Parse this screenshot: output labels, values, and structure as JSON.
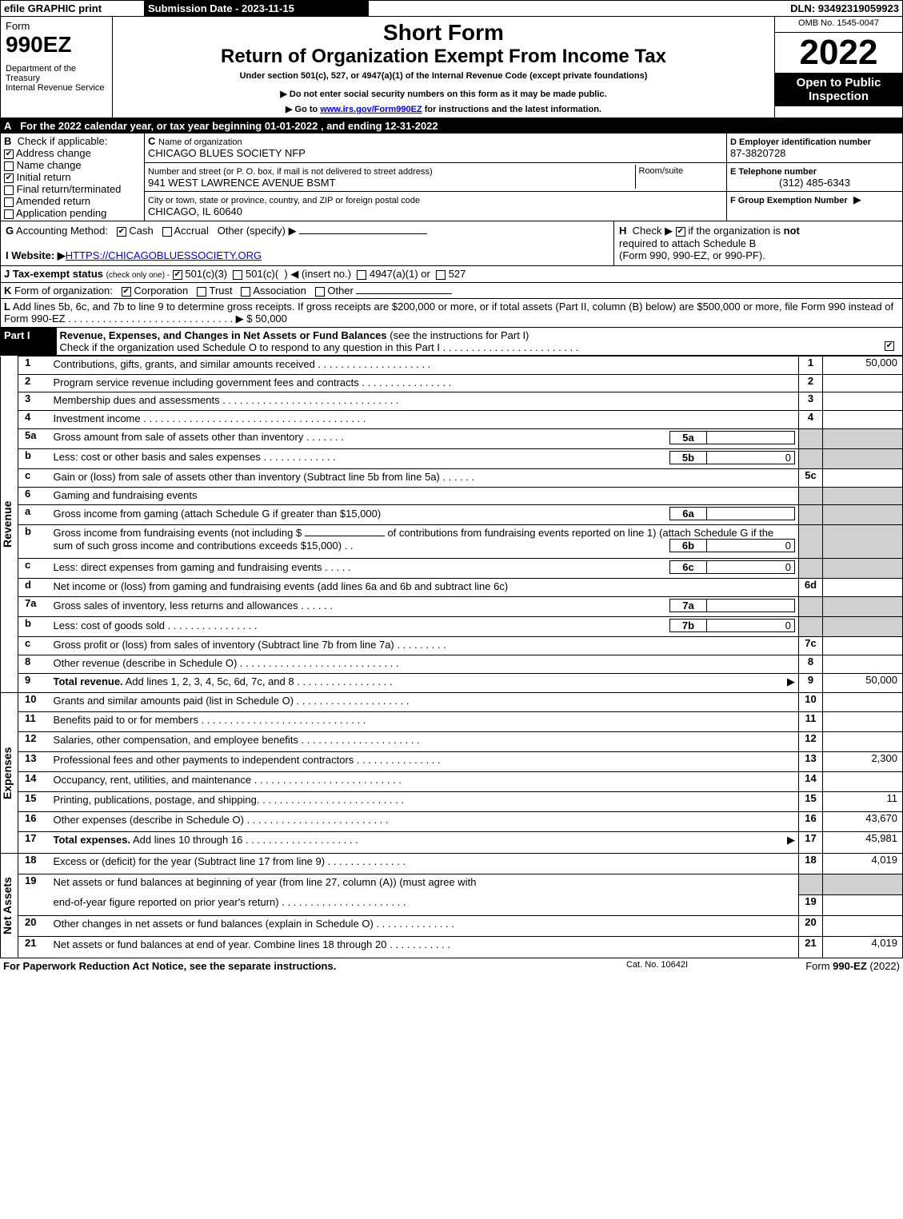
{
  "topbar": {
    "efile": "efile GRAPHIC print",
    "submission": "Submission Date - 2023-11-15",
    "dln": "DLN: 93492319059923"
  },
  "header": {
    "form": "Form",
    "form_number": "990EZ",
    "dept": "Department of the Treasury\nInternal Revenue Service",
    "short_form": "Short Form",
    "title": "Return of Organization Exempt From Income Tax",
    "subtitle": "Under section 501(c), 527, or 4947(a)(1) of the Internal Revenue Code (except private foundations)",
    "note1": "▶ Do not enter social security numbers on this form as it may be made public.",
    "note2_pre": "▶ Go to ",
    "note2_link": "www.irs.gov/Form990EZ",
    "note2_post": " for instructions and the latest information.",
    "omb": "OMB No. 1545-0047",
    "year": "2022",
    "open": "Open to Public Inspection"
  },
  "A": {
    "label": "A",
    "text": "For the 2022 calendar year, or tax year beginning 01-01-2022 , and ending 12-31-2022"
  },
  "B": {
    "label": "B",
    "title": "Check if applicable:",
    "items": [
      {
        "label": "Address change",
        "checked": true
      },
      {
        "label": "Name change",
        "checked": false
      },
      {
        "label": "Initial return",
        "checked": true
      },
      {
        "label": "Final return/terminated",
        "checked": false
      },
      {
        "label": "Amended return",
        "checked": false
      },
      {
        "label": "Application pending",
        "checked": false
      }
    ]
  },
  "C": {
    "label": "C",
    "name_label": "Name of organization",
    "name": "CHICAGO BLUES SOCIETY NFP",
    "addr_label": "Number and street (or P. O. box, if mail is not delivered to street address)",
    "addr": "941 WEST LAWRENCE AVENUE BSMT",
    "room_label": "Room/suite",
    "city_label": "City or town, state or province, country, and ZIP or foreign postal code",
    "city": "CHICAGO, IL  60640"
  },
  "D": {
    "label": "D Employer identification number",
    "val": "87-3820728"
  },
  "E": {
    "label": "E Telephone number",
    "val": "(312) 485-6343"
  },
  "F": {
    "label": "F Group Exemption Number",
    "val": "▶"
  },
  "G": {
    "label": "G",
    "text": "Accounting Method:",
    "cash": "Cash",
    "accrual": "Accrual",
    "other": "Other (specify) ▶"
  },
  "H": {
    "label": "H",
    "text": "Check ▶",
    "text2": "if the organization is",
    "not": "not",
    "req": "required to attach Schedule B",
    "forms": "(Form 990, 990-EZ, or 990-PF)."
  },
  "I": {
    "label": "I Website: ▶",
    "val": "HTTPS://CHICAGOBLUESSOCIETY.ORG"
  },
  "J": {
    "label": "J Tax-exempt status",
    "note": "(check only one) -",
    "o1": "501(c)(3)",
    "o2": "501(c)(",
    "o2b": ")  ◀ (insert no.)",
    "o3": "4947(a)(1) or",
    "o4": "527"
  },
  "K": {
    "label": "K",
    "text": "Form of organization:",
    "corp": "Corporation",
    "trust": "Trust",
    "assoc": "Association",
    "other": "Other"
  },
  "L": {
    "label": "L",
    "text": "Add lines 5b, 6c, and 7b to line 9 to determine gross receipts. If gross receipts are $200,000 or more, or if total assets (Part II, column (B) below) are $500,000 or more, file Form 990 instead of Form 990-EZ",
    "dots": " .  .  .  .  .  .  .  .  .  .  .  .  .  .  .  .  .  .  .  .  .  .  .  .  .  .  .  .  .  ▶ $ 50,000"
  },
  "partI": {
    "label": "Part I",
    "title": "Revenue, Expenses, and Changes in Net Assets or Fund Balances",
    "paren": " (see the instructions for Part I)",
    "check": "Check if the organization used Schedule O to respond to any question in this Part I"
  },
  "sidebars": {
    "rev": "Revenue",
    "exp": "Expenses",
    "net": "Net Assets"
  },
  "lines": {
    "l1": {
      "n": "1",
      "t": "Contributions, gifts, grants, and similar amounts received",
      "dots": " .  .  .  .  .  .  .  .  .  .  .  .  .  .  .  .  .  .  .  .",
      "c": "1",
      "v": "50,000"
    },
    "l2": {
      "n": "2",
      "t": "Program service revenue including government fees and contracts",
      "dots": " .  .  .  .  .  .  .  .  .  .  .  .  .  .  .  .",
      "c": "2",
      "v": ""
    },
    "l3": {
      "n": "3",
      "t": "Membership dues and assessments",
      "dots": " .  .  .  .  .  .  .  .  .  .  .  .  .  .  .  .  .  .  .  .  .  .  .  .  .  .  .  .  .  .  .",
      "c": "3",
      "v": ""
    },
    "l4": {
      "n": "4",
      "t": "Investment income",
      "dots": " .  .  .  .  .  .  .  .  .  .  .  .  .  .  .  .  .  .  .  .  .  .  .  .  .  .  .  .  .  .  .  .  .  .  .  .  .  .  .",
      "c": "4",
      "v": ""
    },
    "l5a": {
      "n": "5a",
      "t": "Gross amount from sale of assets other than inventory",
      "dots": " .  .  .  .  .  .  .",
      "sc": "5a",
      "sv": ""
    },
    "l5b": {
      "n": "b",
      "t": "Less: cost or other basis and sales expenses",
      "dots": " .  .  .  .  .  .  .  .  .  .  .  .  .",
      "sc": "5b",
      "sv": "0"
    },
    "l5c": {
      "n": "c",
      "t": "Gain or (loss) from sale of assets other than inventory (Subtract line 5b from line 5a)",
      "dots": " .  .  .  .  .  .",
      "c": "5c",
      "v": ""
    },
    "l6": {
      "n": "6",
      "t": "Gaming and fundraising events"
    },
    "l6a": {
      "n": "a",
      "t": "Gross income from gaming (attach Schedule G if greater than $15,000)",
      "sc": "6a",
      "sv": ""
    },
    "l6b": {
      "n": "b",
      "t1": "Gross income from fundraising events (not including $",
      "t2": "of contributions from fundraising events reported on line 1) (attach Schedule G if the",
      "t3": "sum of such gross income and contributions exceeds $15,000)",
      "dots": " .  .",
      "sc": "6b",
      "sv": "0"
    },
    "l6c": {
      "n": "c",
      "t": "Less: direct expenses from gaming and fundraising events",
      "dots": " .  .  .  .  .",
      "sc": "6c",
      "sv": "0"
    },
    "l6d": {
      "n": "d",
      "t": "Net income or (loss) from gaming and fundraising events (add lines 6a and 6b and subtract line 6c)",
      "c": "6d",
      "v": ""
    },
    "l7a": {
      "n": "7a",
      "t": "Gross sales of inventory, less returns and allowances",
      "dots": " .  .  .  .  .  .",
      "sc": "7a",
      "sv": ""
    },
    "l7b": {
      "n": "b",
      "t": "Less: cost of goods sold",
      "dots": "           .  .  .  .  .  .  .  .  .  .  .  .  .  .  .  .",
      "sc": "7b",
      "sv": "0"
    },
    "l7c": {
      "n": "c",
      "t": "Gross profit or (loss) from sales of inventory (Subtract line 7b from line 7a)",
      "dots": " .  .  .  .  .  .  .  .  .",
      "c": "7c",
      "v": ""
    },
    "l8": {
      "n": "8",
      "t": "Other revenue (describe in Schedule O)",
      "dots": " .  .  .  .  .  .  .  .  .  .  .  .  .  .  .  .  .  .  .  .  .  .  .  .  .  .  .  .",
      "c": "8",
      "v": ""
    },
    "l9": {
      "n": "9",
      "t": "Total revenue.",
      "t2": " Add lines 1, 2, 3, 4, 5c, 6d, 7c, and 8",
      "dots": "  .  .  .  .  .  .  .  .  .  .  .  .  .  .  .  .  .",
      "arrow": "▶",
      "c": "9",
      "v": "50,000"
    },
    "l10": {
      "n": "10",
      "t": "Grants and similar amounts paid (list in Schedule O)",
      "dots": " .  .  .  .  .  .  .  .  .  .  .  .  .  .  .  .  .  .  .  .",
      "c": "10",
      "v": ""
    },
    "l11": {
      "n": "11",
      "t": "Benefits paid to or for members",
      "dots": "       .  .  .  .  .  .  .  .  .  .  .  .  .  .  .  .  .  .  .  .  .  .  .  .  .  .  .  .  .",
      "c": "11",
      "v": ""
    },
    "l12": {
      "n": "12",
      "t": "Salaries, other compensation, and employee benefits",
      "dots": " .  .  .  .  .  .  .  .  .  .  .  .  .  .  .  .  .  .  .  .  .",
      "c": "12",
      "v": ""
    },
    "l13": {
      "n": "13",
      "t": "Professional fees and other payments to independent contractors",
      "dots": " .  .  .  .  .  .  .  .  .  .  .  .  .  .  .",
      "c": "13",
      "v": "2,300"
    },
    "l14": {
      "n": "14",
      "t": "Occupancy, rent, utilities, and maintenance",
      "dots": " .  .  .  .  .  .  .  .  .  .  .  .  .  .  .  .  .  .  .  .  .  .  .  .  .  .",
      "c": "14",
      "v": ""
    },
    "l15": {
      "n": "15",
      "t": "Printing, publications, postage, and shipping.",
      "dots": " .  .  .  .  .  .  .  .  .  .  .  .  .  .  .  .  .  .  .  .  .  .  .  .  .",
      "c": "15",
      "v": "11"
    },
    "l16": {
      "n": "16",
      "t": "Other expenses (describe in Schedule O)",
      "dots": "      .  .  .  .  .  .  .  .  .  .  .  .  .  .  .  .  .  .  .  .  .  .  .  .  .",
      "c": "16",
      "v": "43,670"
    },
    "l17": {
      "n": "17",
      "t": "Total expenses.",
      "t2": " Add lines 10 through 16",
      "dots": "       .  .  .  .  .  .  .  .  .  .  .  .  .  .  .  .  .  .  .  .",
      "arrow": "▶",
      "c": "17",
      "v": "45,981"
    },
    "l18": {
      "n": "18",
      "t": "Excess or (deficit) for the year (Subtract line 17 from line 9)",
      "dots": "          .  .  .  .  .  .  .  .  .  .  .  .  .  .",
      "c": "18",
      "v": "4,019"
    },
    "l19": {
      "n": "19",
      "t": "Net assets or fund balances at beginning of year (from line 27, column (A)) (must agree with",
      "t2": "end-of-year figure reported on prior year's return)",
      "dots": " .  .  .  .  .  .  .  .  .  .  .  .  .  .  .  .  .  .  .  .  .  .",
      "c": "19",
      "v": ""
    },
    "l20": {
      "n": "20",
      "t": "Other changes in net assets or fund balances (explain in Schedule O)",
      "dots": " .  .  .  .  .  .  .  .  .  .  .  .  .  .",
      "c": "20",
      "v": ""
    },
    "l21": {
      "n": "21",
      "t": "Net assets or fund balances at end of year. Combine lines 18 through 20",
      "dots": " .  .  .  .  .  .  .  .  .  .  .",
      "c": "21",
      "v": "4,019"
    }
  },
  "footer": {
    "left": "For Paperwork Reduction Act Notice, see the separate instructions.",
    "mid": "Cat. No. 10642I",
    "right_pre": "Form ",
    "right_b": "990-EZ",
    "right_post": " (2022)"
  }
}
